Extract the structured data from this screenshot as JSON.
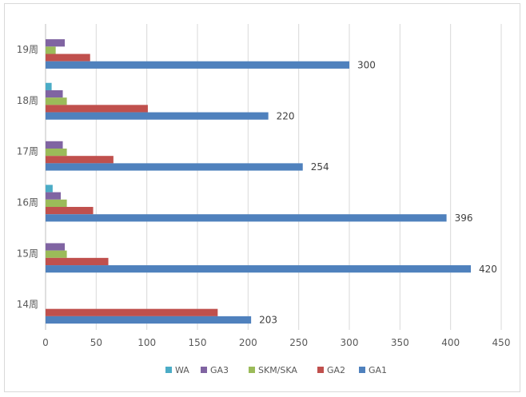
{
  "chart_data": {
    "type": "bar",
    "orientation": "horizontal",
    "title": "",
    "xlabel": "",
    "ylabel": "",
    "xlim": [
      0,
      450
    ],
    "x_ticks": [
      "0",
      "50",
      "100",
      "150",
      "200",
      "250",
      "300",
      "350",
      "400",
      "450"
    ],
    "grid": true,
    "legend_position": "bottom",
    "categories": [
      "19周",
      "18周",
      "17周",
      "16周",
      "15周",
      "14周"
    ],
    "series": [
      {
        "name": "WA",
        "color": "#4bacc6",
        "values": [
          0,
          6,
          0,
          7,
          0,
          0
        ],
        "show_labels": false
      },
      {
        "name": "GA3",
        "color": "#8064a2",
        "values": [
          19,
          17,
          17,
          15,
          19,
          0
        ],
        "show_labels": false
      },
      {
        "name": "SKM/SKA",
        "color": "#9bbb59",
        "values": [
          10,
          21,
          21,
          21,
          21,
          0
        ],
        "show_labels": false
      },
      {
        "name": "GA2",
        "color": "#c0504d",
        "values": [
          44,
          101,
          67,
          47,
          62,
          170
        ],
        "show_labels": false
      },
      {
        "name": "GA1",
        "color": "#4f81bd",
        "values": [
          300,
          220,
          254,
          396,
          420,
          203
        ],
        "show_labels": true
      }
    ],
    "legend_order": [
      "WA",
      "GA3",
      "SKM/SKA",
      "GA2",
      "GA1"
    ]
  }
}
